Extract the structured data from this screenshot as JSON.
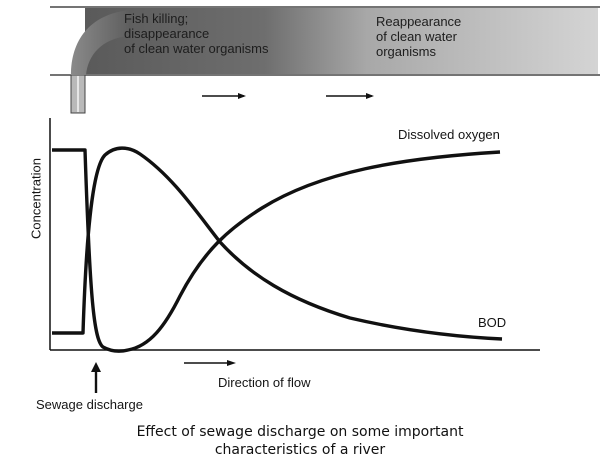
{
  "river": {
    "left_zone_text": [
      "Fish killing;",
      "disappearance",
      "of clean water organisms"
    ],
    "right_zone_text": [
      "Reappearance",
      "of clean water",
      "organisms"
    ]
  },
  "graph": {
    "ylabel": "Concentration",
    "curve_labels": {
      "dissolved_oxygen": "Dissolved oxygen",
      "bod": "BOD"
    },
    "flow_label": "Direction of flow",
    "discharge_label": "Sewage discharge"
  },
  "caption": {
    "line1": "Effect of sewage discharge on some important",
    "line2": "characteristics of a river"
  },
  "colors": {
    "ink": "#111111",
    "pipe": "#888888",
    "water_dark": "#6e6e6e",
    "water_light": "#cfcfcf"
  }
}
